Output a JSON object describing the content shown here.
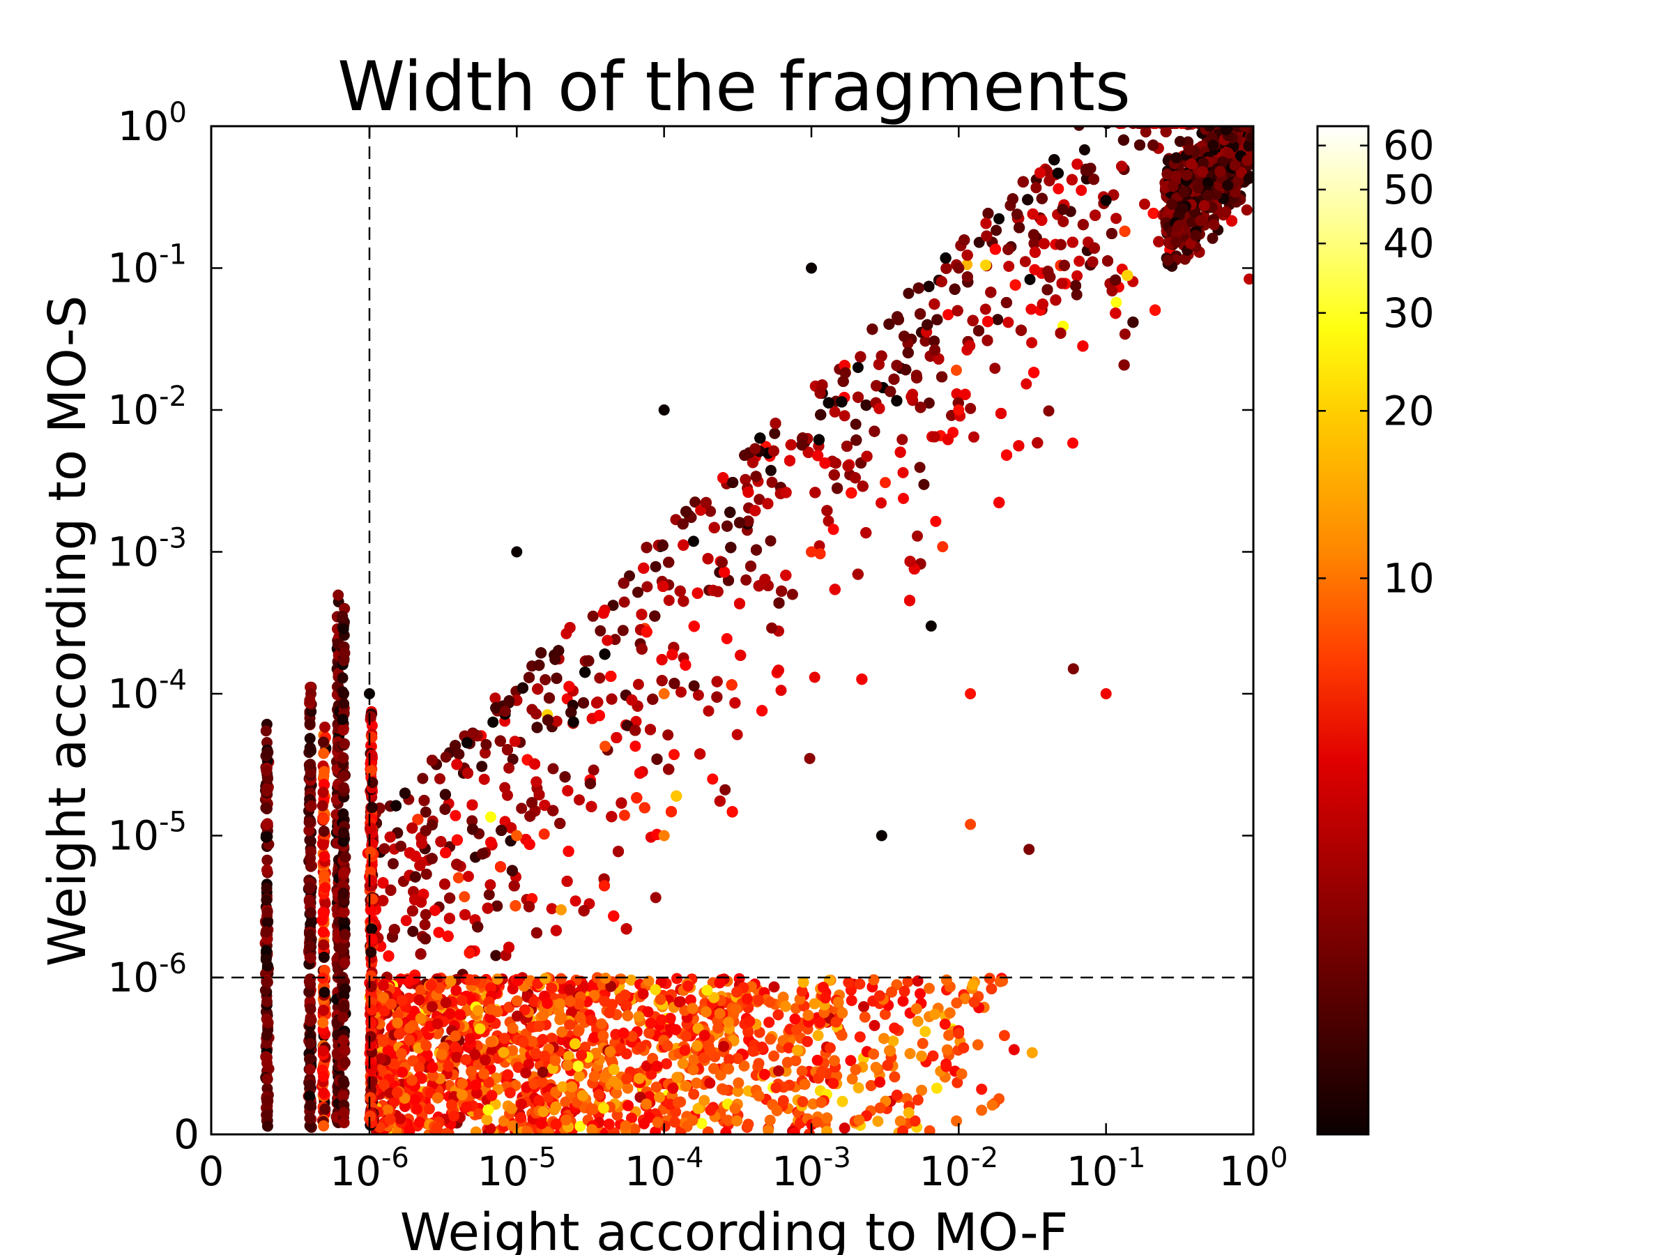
{
  "chart_data": {
    "type": "scatter",
    "title": "Width of the fragments",
    "xlabel": "Weight according to MO-F",
    "ylabel": "Weight according to MO-S",
    "x_scale": "symlog",
    "y_scale": "symlog",
    "xlim": [
      0,
      1
    ],
    "ylim": [
      0,
      1
    ],
    "x_tick_labels": [
      {
        "value": 0,
        "base": "0",
        "exp": ""
      },
      {
        "value": 1e-06,
        "base": "10",
        "exp": "-6"
      },
      {
        "value": 1e-05,
        "base": "10",
        "exp": "-5"
      },
      {
        "value": 0.0001,
        "base": "10",
        "exp": "-4"
      },
      {
        "value": 0.001,
        "base": "10",
        "exp": "-3"
      },
      {
        "value": 0.01,
        "base": "10",
        "exp": "-2"
      },
      {
        "value": 0.1,
        "base": "10",
        "exp": "-1"
      },
      {
        "value": 1,
        "base": "10",
        "exp": "0"
      }
    ],
    "y_tick_labels": [
      {
        "value": 0,
        "base": "0",
        "exp": ""
      },
      {
        "value": 1e-06,
        "base": "10",
        "exp": "-6"
      },
      {
        "value": 1e-05,
        "base": "10",
        "exp": "-5"
      },
      {
        "value": 0.0001,
        "base": "10",
        "exp": "-4"
      },
      {
        "value": 0.001,
        "base": "10",
        "exp": "-3"
      },
      {
        "value": 0.01,
        "base": "10",
        "exp": "-2"
      },
      {
        "value": 0.1,
        "base": "10",
        "exp": "-1"
      },
      {
        "value": 1,
        "base": "10",
        "exp": "0"
      }
    ],
    "reference_lines": [
      {
        "orientation": "vertical",
        "x": 1e-06,
        "style": "dashed"
      },
      {
        "orientation": "horizontal",
        "y": 1e-06,
        "style": "dashed"
      }
    ],
    "colorbar": {
      "colormap": "hot",
      "scale": "log",
      "range": [
        1,
        65
      ],
      "tick_labels": [
        "10",
        "20",
        "30",
        "40",
        "50",
        "60"
      ],
      "tick_values": [
        10,
        20,
        30,
        40,
        50,
        60
      ]
    },
    "legend": "none",
    "grid": false,
    "approximate_point_count": 9000,
    "points_sample": [
      {
        "x": 1e-06,
        "y": 0.0001,
        "c": 1
      },
      {
        "x": 1e-05,
        "y": 0.001,
        "c": 1
      },
      {
        "x": 0.0001,
        "y": 0.01,
        "c": 1
      },
      {
        "x": 0.001,
        "y": 0.1,
        "c": 1
      },
      {
        "x": 0.01,
        "y": 0.1,
        "c": 2
      },
      {
        "x": 0.1,
        "y": 0.3,
        "c": 1
      },
      {
        "x": 1e-05,
        "y": 1e-05,
        "c": 8
      },
      {
        "x": 0.0001,
        "y": 0.0001,
        "c": 9
      },
      {
        "x": 0.001,
        "y": 0.001,
        "c": 6
      },
      {
        "x": 0.01,
        "y": 0.01,
        "c": 5
      },
      {
        "x": 2e-05,
        "y": 3e-06,
        "c": 12
      },
      {
        "x": 0.0001,
        "y": 1e-05,
        "c": 10
      },
      {
        "x": 0.06,
        "y": 0.00015,
        "c": 2
      },
      {
        "x": 0.1,
        "y": 0.0001,
        "c": 4
      },
      {
        "x": 0.03,
        "y": 8e-06,
        "c": 2
      },
      {
        "x": 0.012,
        "y": 0.0001,
        "c": 5
      },
      {
        "x": 0.012,
        "y": 1.2e-05,
        "c": 7
      },
      {
        "x": 0.003,
        "y": 1e-05,
        "c": 1
      },
      {
        "x": 0.0065,
        "y": 0.0003,
        "c": 1
      }
    ]
  }
}
